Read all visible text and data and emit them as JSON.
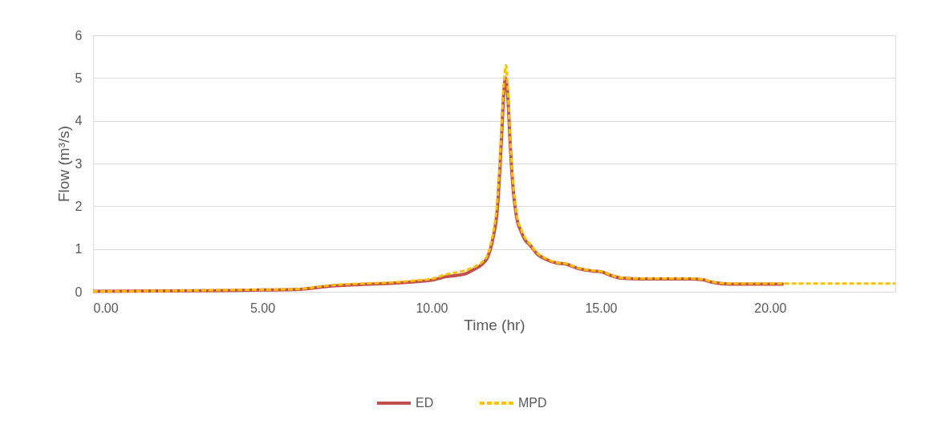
{
  "chart_data": {
    "type": "line",
    "xlabel": "Time (hr)",
    "ylabel": "Flow (m³/s)",
    "xlim": [
      0,
      23.7
    ],
    "xticks": [
      {
        "value": 0,
        "label": "0.00"
      },
      {
        "value": 5,
        "label": "5.00"
      },
      {
        "value": 10,
        "label": "10.00"
      },
      {
        "value": 15,
        "label": "15.00"
      },
      {
        "value": 20,
        "label": "20.00"
      }
    ],
    "ylim": [
      0,
      6
    ],
    "yticks": [
      0,
      1,
      2,
      3,
      4,
      5,
      6
    ],
    "grid": "y",
    "legend": "bottom",
    "marker": "none",
    "series": [
      {
        "name": "ED",
        "color": "#c0504d",
        "line_style": "solid",
        "x": [
          0,
          2,
          4,
          5,
          6,
          6.3,
          7,
          7.9,
          8.9,
          9.6,
          10,
          10.4,
          11,
          11.2,
          11.5,
          11.65,
          11.8,
          11.95,
          12.06,
          12.13,
          12.18,
          12.25,
          12.32,
          12.4,
          12.5,
          12.65,
          12.77,
          12.9,
          13.1,
          13.4,
          13.7,
          13.95,
          14.3,
          14.8,
          15,
          15.3,
          15.6,
          16.2,
          17.6,
          18,
          18.3,
          18.8,
          20.4
        ],
        "values": [
          0.01,
          0.02,
          0.03,
          0.04,
          0.05,
          0.07,
          0.13,
          0.17,
          0.2,
          0.24,
          0.27,
          0.35,
          0.42,
          0.5,
          0.65,
          0.8,
          1.2,
          2.0,
          3.5,
          4.6,
          5.0,
          4.6,
          3.5,
          2.5,
          1.8,
          1.4,
          1.2,
          1.1,
          0.9,
          0.75,
          0.67,
          0.65,
          0.55,
          0.48,
          0.47,
          0.38,
          0.32,
          0.3,
          0.3,
          0.28,
          0.22,
          0.18,
          0.18
        ]
      },
      {
        "name": "MPD",
        "color": "#ffc000",
        "line_style": "dashed",
        "x": [
          0,
          2,
          4,
          5,
          6,
          6.3,
          7,
          7.9,
          8.9,
          9.6,
          10,
          10.4,
          11,
          11.2,
          11.5,
          11.65,
          11.8,
          11.95,
          12.06,
          12.13,
          12.2,
          12.25,
          12.32,
          12.4,
          12.5,
          12.65,
          12.77,
          12.9,
          13.1,
          13.4,
          13.7,
          13.95,
          14.3,
          14.8,
          15,
          15.3,
          15.6,
          16.2,
          17.6,
          18,
          18.3,
          18.8,
          20.4,
          23.7
        ],
        "values": [
          0.01,
          0.02,
          0.04,
          0.05,
          0.06,
          0.08,
          0.15,
          0.19,
          0.22,
          0.27,
          0.3,
          0.4,
          0.5,
          0.56,
          0.7,
          0.85,
          1.3,
          2.2,
          3.7,
          4.8,
          5.3,
          4.8,
          3.6,
          2.6,
          1.85,
          1.45,
          1.25,
          1.12,
          0.92,
          0.77,
          0.68,
          0.66,
          0.56,
          0.49,
          0.48,
          0.39,
          0.33,
          0.31,
          0.31,
          0.29,
          0.23,
          0.19,
          0.19,
          0.19
        ]
      }
    ]
  }
}
